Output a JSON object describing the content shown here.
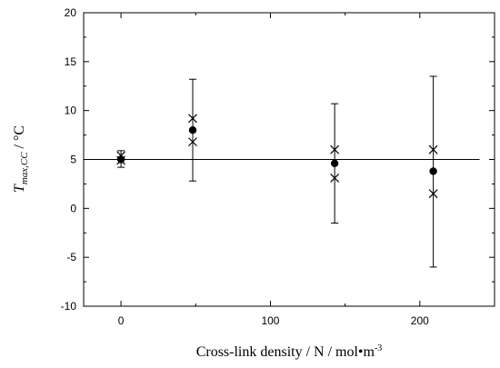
{
  "chart_data": {
    "type": "scatter",
    "title": "",
    "xlabel": "Cross-link density / N / mol•m",
    "xlabel_superscript": "-3",
    "ylabel": "T",
    "ylabel_subscript": "max,CC",
    "ylabel_unit": " / °C",
    "xlim": [
      -25,
      250
    ],
    "ylim": [
      -10,
      20
    ],
    "xticks": [
      0,
      100,
      200
    ],
    "yticks": [
      -10,
      -5,
      0,
      5,
      10,
      15,
      20
    ],
    "grid": false,
    "reference_line_y": 5,
    "mean_points": [
      {
        "x": 0,
        "y": 5.0,
        "err_low": 4.2,
        "err_high": 5.9
      },
      {
        "x": 48,
        "y": 8.0,
        "err_low": 2.8,
        "err_high": 13.2
      },
      {
        "x": 143,
        "y": 4.6,
        "err_low": -1.5,
        "err_high": 10.7
      },
      {
        "x": 209,
        "y": 3.8,
        "err_low": -6.0,
        "err_high": 13.5
      }
    ],
    "individual_points": [
      {
        "x": 0,
        "y": 5.4
      },
      {
        "x": 0,
        "y": 4.9
      },
      {
        "x": 48,
        "y": 9.2
      },
      {
        "x": 48,
        "y": 6.8
      },
      {
        "x": 143,
        "y": 6.0
      },
      {
        "x": 143,
        "y": 3.1
      },
      {
        "x": 209,
        "y": 6.0
      },
      {
        "x": 209,
        "y": 1.5
      }
    ]
  }
}
